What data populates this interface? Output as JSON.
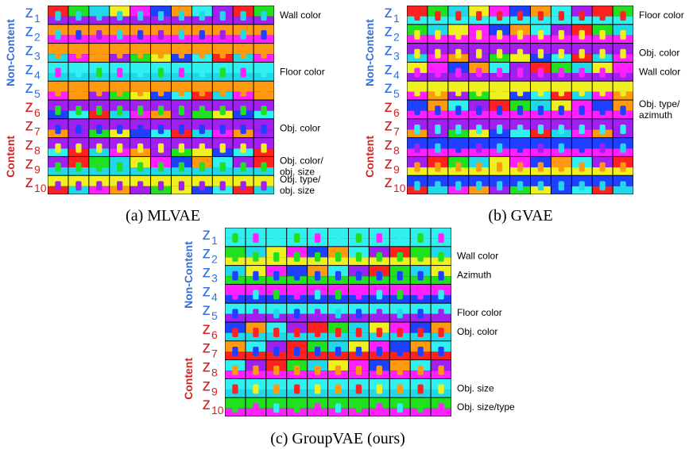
{
  "panels": [
    {
      "caption": "(a) MLVAE",
      "non_content": "Non-Content",
      "content": "Content",
      "rows": [
        {
          "var": "z",
          "sub": "1",
          "note": [
            "Wall color"
          ]
        },
        {
          "var": "z",
          "sub": "2",
          "note": []
        },
        {
          "var": "z",
          "sub": "3",
          "note": []
        },
        {
          "var": "z",
          "sub": "4",
          "note": [
            "Floor color"
          ]
        },
        {
          "var": "z",
          "sub": "5",
          "note": []
        },
        {
          "var": "z",
          "sub": "6",
          "note": []
        },
        {
          "var": "z",
          "sub": "7",
          "note": [
            "Obj. color"
          ]
        },
        {
          "var": "z",
          "sub": "8",
          "note": []
        },
        {
          "var": "z",
          "sub": "9",
          "note": [
            "Obj. color/",
            "obj. size"
          ]
        },
        {
          "var": "z",
          "sub": "10",
          "note": [
            "Obj. type/",
            "obj. size"
          ]
        }
      ]
    },
    {
      "caption": "(b) GVAE",
      "non_content": "Non-Content",
      "content": "Content",
      "rows": [
        {
          "var": "z",
          "sub": "1",
          "note": [
            "Floor color"
          ]
        },
        {
          "var": "z",
          "sub": "2",
          "note": []
        },
        {
          "var": "z",
          "sub": "3",
          "note": [
            "Obj. color"
          ]
        },
        {
          "var": "z",
          "sub": "4",
          "note": [
            "Wall color"
          ]
        },
        {
          "var": "z",
          "sub": "5",
          "note": []
        },
        {
          "var": "z",
          "sub": "6",
          "note": [
            "Obj. type/",
            "azimuth"
          ]
        },
        {
          "var": "z",
          "sub": "7",
          "note": []
        },
        {
          "var": "z",
          "sub": "8",
          "note": []
        },
        {
          "var": "z",
          "sub": "9",
          "note": []
        },
        {
          "var": "z",
          "sub": "10",
          "note": []
        }
      ]
    },
    {
      "caption": "(c) GroupVAE (ours)",
      "non_content": "Non-Content",
      "content": "Content",
      "rows": [
        {
          "var": "z",
          "sub": "1",
          "note": []
        },
        {
          "var": "z",
          "sub": "2",
          "note": [
            "Wall color"
          ]
        },
        {
          "var": "z",
          "sub": "3",
          "note": [
            "Azimuth"
          ]
        },
        {
          "var": "z",
          "sub": "4",
          "note": []
        },
        {
          "var": "z",
          "sub": "5",
          "note": [
            "Floor color"
          ]
        },
        {
          "var": "z",
          "sub": "6",
          "note": [
            "Obj. color"
          ]
        },
        {
          "var": "z",
          "sub": "7",
          "note": []
        },
        {
          "var": "z",
          "sub": "8",
          "note": []
        },
        {
          "var": "z",
          "sub": "9",
          "note": [
            "Obj. size"
          ]
        },
        {
          "var": "z",
          "sub": "10",
          "note": [
            "Obj. size/type"
          ]
        }
      ]
    }
  ]
}
